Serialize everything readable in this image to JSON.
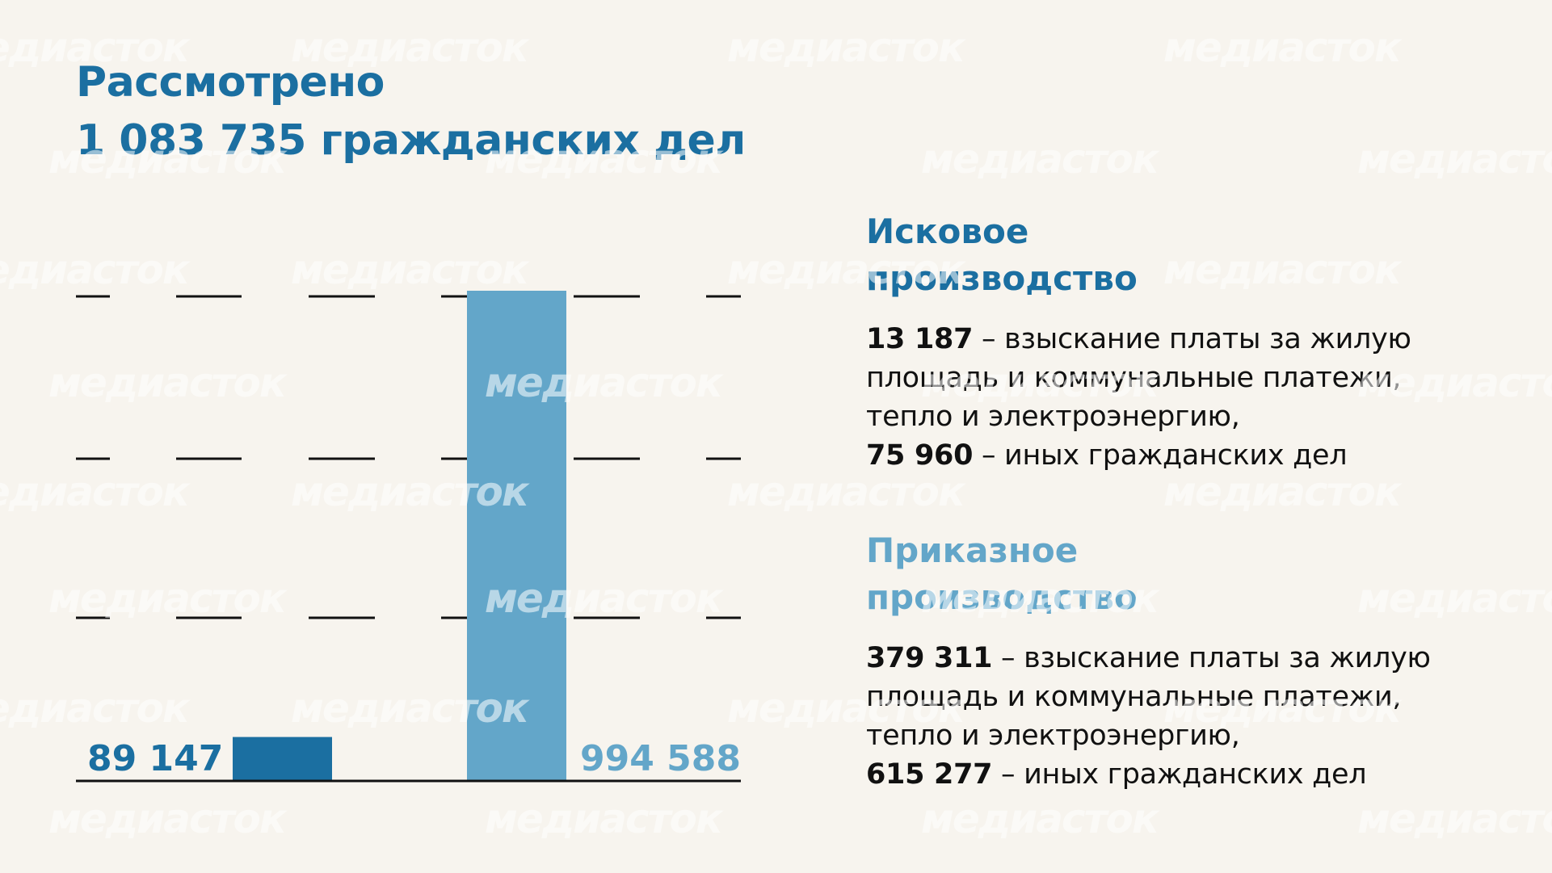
{
  "title": {
    "line1": "Рассмотрено",
    "line2": "1 083 735 гражданских дел"
  },
  "watermark": "медиасток",
  "colors": {
    "background": "#f7f4ee",
    "dark_blue": "#1b6fa1",
    "light_blue": "#63a6c9",
    "text": "#111111"
  },
  "chart_data": {
    "type": "bar",
    "categories": [
      "Исковое производство",
      "Приказное производство"
    ],
    "values": [
      89147,
      994588
    ],
    "value_labels": [
      "89 147",
      "994 588"
    ],
    "colors": [
      "#1b6fa1",
      "#63a6c9"
    ],
    "ylim": [
      0,
      994588
    ],
    "grid": "dashed horizontal lines, no tick labels",
    "legend": "none"
  },
  "sections": {
    "iskovoe": {
      "heading1": "Исковое",
      "heading2": "производство",
      "item1_number": "13 187",
      "item1_text_a": " – взыскание платы за жилую",
      "item1_text_b": "площадь и коммунальные платежи,",
      "item1_text_c": "тепло и электроэнергию,",
      "item2_number": "75 960",
      "item2_text": " – иных гражданских дел"
    },
    "prikaz": {
      "heading1": "Приказное",
      "heading2": "производство",
      "item1_number": "379 311",
      "item1_text_a": " – взыскание платы за жилую",
      "item1_text_b": "площадь и коммунальные платежи,",
      "item1_text_c": "тепло и электроэнергию,",
      "item2_number": "615 277",
      "item2_text": " – иных гражданских дел"
    }
  }
}
